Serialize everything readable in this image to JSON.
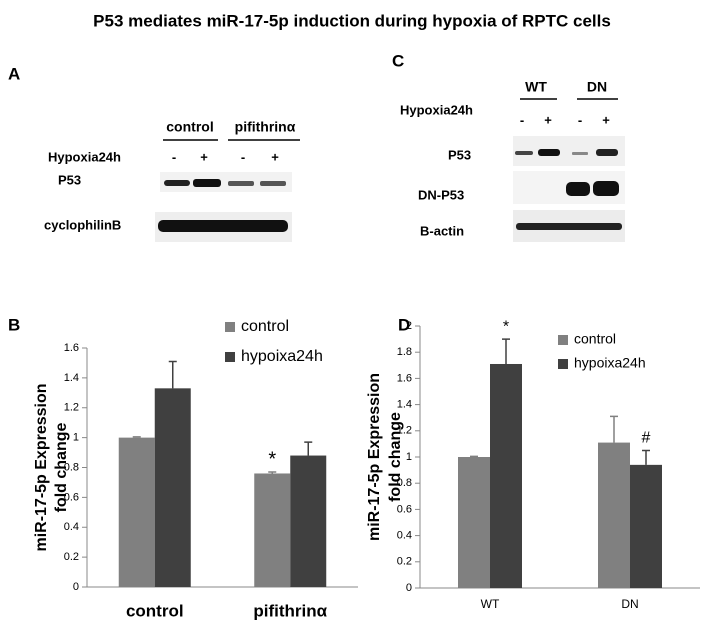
{
  "title": "P53 mediates miR-17-5p induction during hypoxia of RPTC cells",
  "blots": {
    "A": {
      "letter": "A",
      "groups": [
        "control",
        "pifithrinα"
      ],
      "treatment": "Hypoxia24h",
      "lanes": [
        "-",
        "+",
        "-",
        "+"
      ],
      "rows": [
        "P53",
        "cyclophilinB"
      ]
    },
    "C": {
      "letter": "C",
      "groups": [
        "WT",
        "DN"
      ],
      "treatment": "Hypoxia24h",
      "lanes": [
        "-",
        "+",
        "-",
        "+"
      ],
      "rows": [
        "P53",
        "DN-P53",
        "B-actin"
      ]
    }
  },
  "chart_data": [
    {
      "type": "bar",
      "letter": "B",
      "ylabel": [
        "miR-17-5p Expression",
        "fold change"
      ],
      "categories": [
        "control",
        "pifithrinα"
      ],
      "series": [
        {
          "name": "control",
          "color": "#808080",
          "values": [
            1.0,
            0.76
          ],
          "errors": [
            0.005,
            0.01
          ]
        },
        {
          "name": "hypoixa24h",
          "color": "#404040",
          "values": [
            1.33,
            0.88
          ],
          "errors": [
            0.18,
            0.09
          ]
        }
      ],
      "annotations": [
        "*"
      ],
      "ylim": [
        0,
        1.6
      ],
      "yticks": [
        0,
        0.2,
        0.4,
        0.6,
        0.8,
        1,
        1.2,
        1.4,
        1.6
      ]
    },
    {
      "type": "bar",
      "letter": "D",
      "ylabel": [
        "miR-17-5p Expression",
        "fold change"
      ],
      "categories": [
        "WT",
        "DN"
      ],
      "series": [
        {
          "name": "control",
          "color": "#808080",
          "values": [
            1.0,
            1.11
          ],
          "errors": [
            0.005,
            0.2
          ]
        },
        {
          "name": "hypoixa24h",
          "color": "#404040",
          "values": [
            1.71,
            0.94
          ],
          "errors": [
            0.19,
            0.11
          ]
        }
      ],
      "annotations": [
        "*",
        "#"
      ],
      "ylim": [
        0,
        2
      ],
      "yticks": [
        0,
        0.2,
        0.4,
        0.6,
        0.8,
        1,
        1.2,
        1.4,
        1.6,
        1.8,
        2
      ]
    }
  ]
}
